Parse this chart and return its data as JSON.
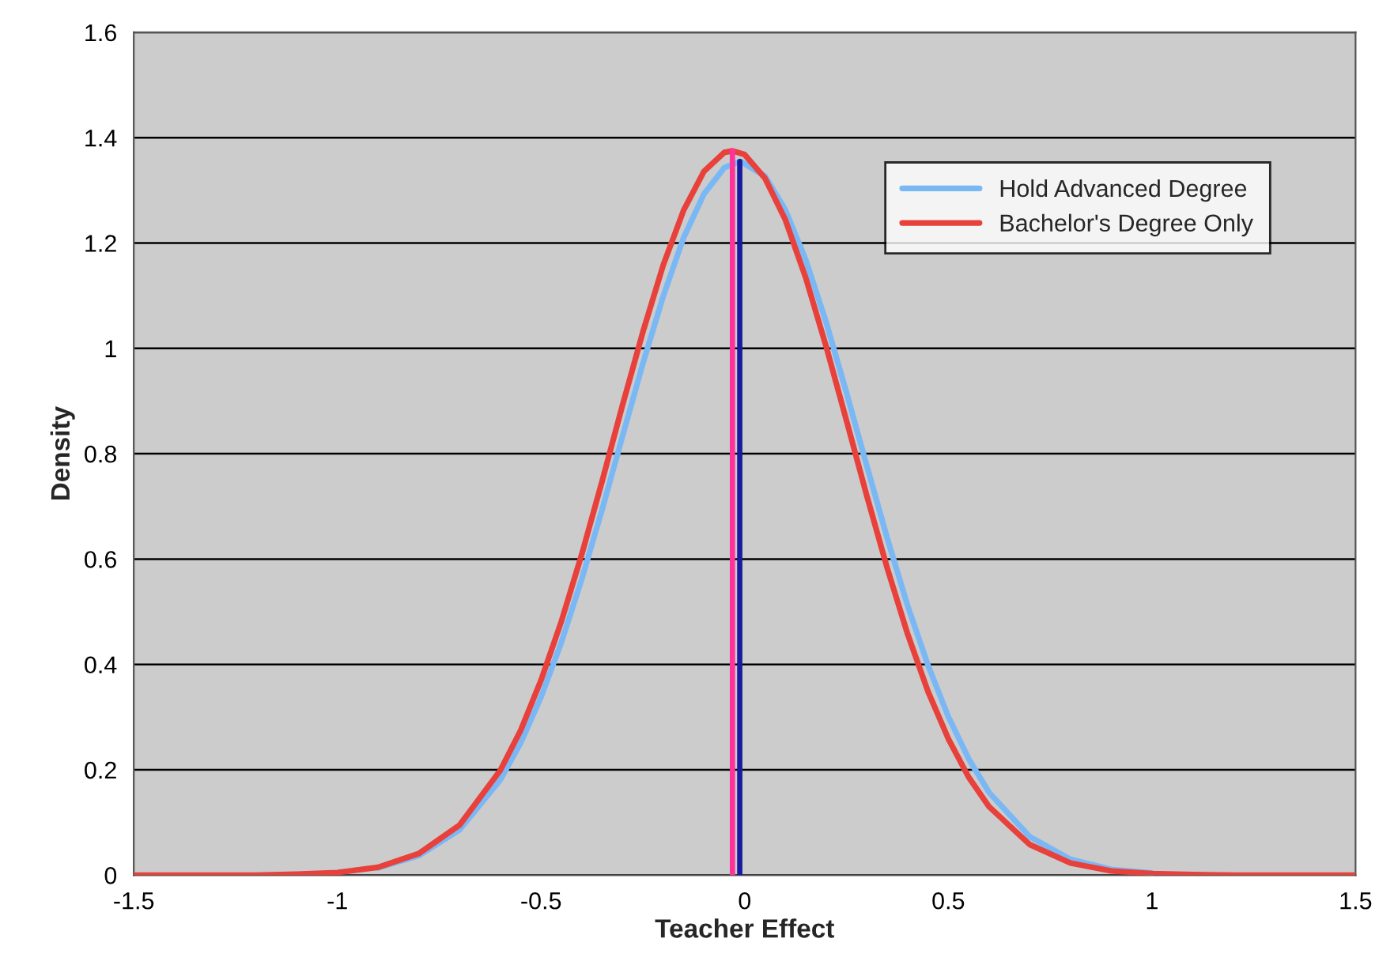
{
  "chart_data": {
    "type": "line",
    "xlabel": "Teacher Effect",
    "ylabel": "Density",
    "xlim": [
      -1.5,
      1.5
    ],
    "ylim": [
      0,
      1.6
    ],
    "xticks": [
      -1.5,
      -1,
      -0.5,
      0,
      0.5,
      1,
      1.5
    ],
    "yticks": [
      0,
      0.2,
      0.4,
      0.6,
      0.8,
      1,
      1.2,
      1.4,
      1.6
    ],
    "grid": "y",
    "legend": "top right",
    "marker": "none",
    "line_style": "solid",
    "series": [
      {
        "name": "Hold Advanced Degree",
        "color": "#7ab8f5",
        "x": [
          -0.9,
          -0.8,
          -0.7,
          -0.6,
          -0.55,
          -0.5,
          -0.45,
          -0.4,
          -0.35,
          -0.3,
          -0.25,
          -0.2,
          -0.15,
          -0.1,
          -0.05,
          -0.01,
          0.05,
          0.1,
          0.15,
          0.2,
          0.25,
          0.3,
          0.35,
          0.4,
          0.45,
          0.5,
          0.55,
          0.6,
          0.7,
          0.8,
          0.9,
          1.0
        ],
        "values": [
          0.014,
          0.037,
          0.086,
          0.181,
          0.251,
          0.338,
          0.442,
          0.562,
          0.694,
          0.833,
          0.971,
          1.099,
          1.21,
          1.293,
          1.343,
          1.355,
          1.327,
          1.263,
          1.168,
          1.05,
          0.916,
          0.777,
          0.64,
          0.512,
          0.399,
          0.301,
          0.221,
          0.157,
          0.073,
          0.03,
          0.011,
          0.004
        ]
      },
      {
        "name": "Bachelor's Degree Only",
        "color": "#e8413c",
        "x": [
          -1.5,
          -1.2,
          -1.1,
          -1.0,
          -0.9,
          -0.8,
          -0.7,
          -0.6,
          -0.55,
          -0.5,
          -0.45,
          -0.4,
          -0.35,
          -0.3,
          -0.25,
          -0.2,
          -0.15,
          -0.1,
          -0.05,
          -0.03,
          0,
          0.05,
          0.1,
          0.15,
          0.2,
          0.25,
          0.3,
          0.35,
          0.4,
          0.45,
          0.5,
          0.55,
          0.6,
          0.7,
          0.8,
          0.9,
          1.0,
          1.1,
          1.2,
          1.5
        ],
        "values": [
          0,
          0,
          0.002,
          0.005,
          0.015,
          0.041,
          0.095,
          0.199,
          0.275,
          0.37,
          0.482,
          0.609,
          0.748,
          0.892,
          1.031,
          1.158,
          1.262,
          1.336,
          1.372,
          1.375,
          1.368,
          1.323,
          1.244,
          1.134,
          1.004,
          0.863,
          0.72,
          0.583,
          0.458,
          0.349,
          0.259,
          0.186,
          0.13,
          0.058,
          0.023,
          0.008,
          0.003,
          0.001,
          0,
          0
        ]
      },
      {
        "color": "#ff3399",
        "x": [
          -0.03,
          -0.03
        ],
        "values": [
          0,
          1.375
        ]
      },
      {
        "color": "#1a1a9e",
        "x": [
          -0.012,
          -0.012
        ],
        "values": [
          0,
          1.355
        ]
      }
    ]
  }
}
